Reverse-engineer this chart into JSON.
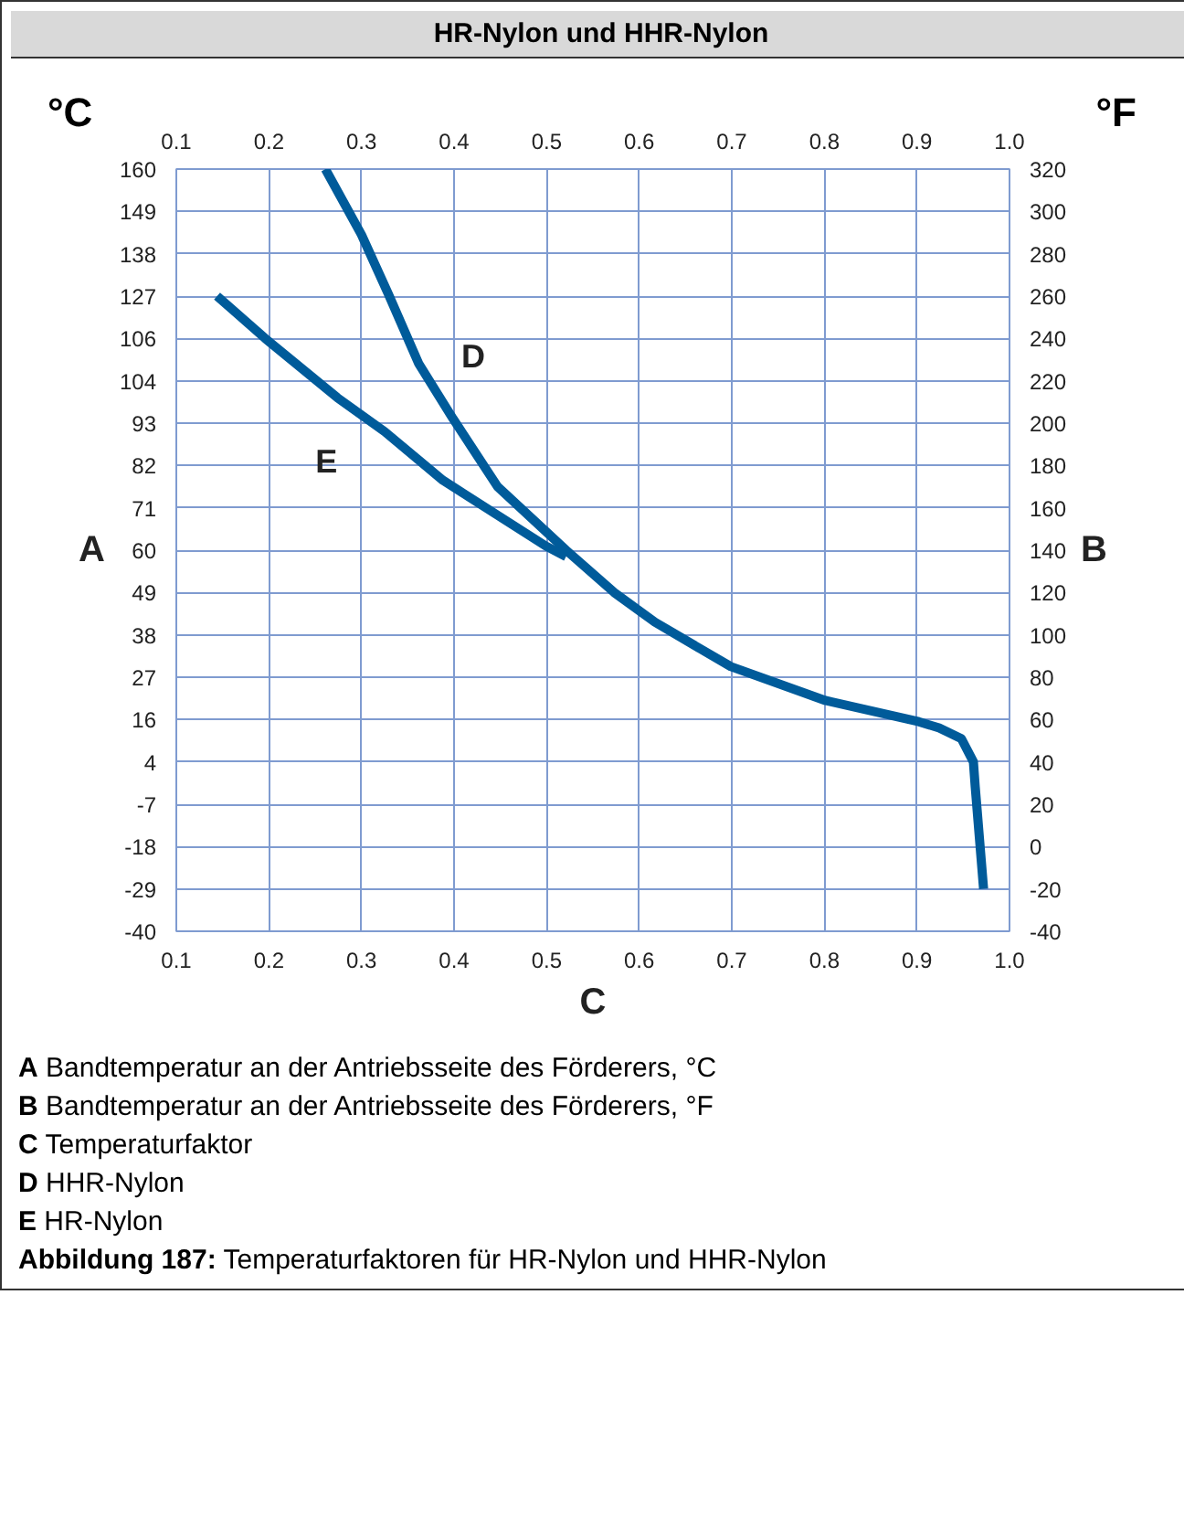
{
  "chart_data": {
    "type": "line",
    "title": "HR-Nylon und HHR-Nylon",
    "xlabel": "C",
    "ylabel": "B",
    "xlim": [
      0.1,
      1.0
    ],
    "xticks": [
      0.1,
      0.2,
      0.3,
      0.4,
      0.5,
      0.6,
      0.7,
      0.8,
      0.9,
      {
        "value": 1.0,
        "label": "1.0"
      }
    ],
    "x2lim": [
      0.1,
      1.0
    ],
    "x2ticks": [
      0.1,
      0.2,
      0.3,
      0.4,
      0.5,
      0.6,
      0.7,
      0.8,
      0.9,
      {
        "value": 1.0,
        "label": "1.0"
      }
    ],
    "ylim": [
      -40,
      320
    ],
    "yticks": [
      -40,
      -20,
      0,
      20,
      40,
      60,
      80,
      100,
      120,
      140,
      160,
      180,
      200,
      220,
      240,
      260,
      280,
      300,
      320
    ],
    "grid": true,
    "marker": "none",
    "line_style": "solid",
    "series": [
      {
        "name": "D",
        "color": "#005b9a",
        "x": [
          0.261,
          0.3,
          0.329,
          0.362,
          0.399,
          0.447,
          0.521,
          0.573,
          0.617,
          0.699,
          0.801,
          0.902,
          0.924,
          0.948,
          0.961,
          0.963,
          0.972
        ],
        "values": [
          320,
          289,
          261,
          228,
          202,
          170,
          140,
          120,
          106,
          85,
          69,
          59,
          56,
          51,
          40,
          28,
          -20
        ]
      },
      {
        "name": "E",
        "color": "#005b9a",
        "x": [
          0.144,
          0.196,
          0.274,
          0.325,
          0.388,
          0.499,
          0.521
        ],
        "values": [
          260,
          240,
          212,
          196,
          173,
          142,
          137
        ]
      }
    ],
    "annotations": [
      "°C",
      "°F",
      "A",
      "-40",
      "-29",
      "-18",
      "-7",
      "4",
      "16",
      "27",
      "38",
      "49",
      "60",
      "71",
      "82",
      "93",
      "104",
      "106",
      "127",
      "138",
      "149",
      "160",
      "A Bandtemperatur an der Antriebsseite des Förderers, °C",
      "B Bandtemperatur an der Antriebsseite des Förderers, °F",
      "C Temperaturfaktor",
      "D HHR-Nylon",
      "E HR-Nylon",
      "Abbildung 187: Temperaturfaktoren für HR-Nylon und HHR-Nylon"
    ]
  }
}
